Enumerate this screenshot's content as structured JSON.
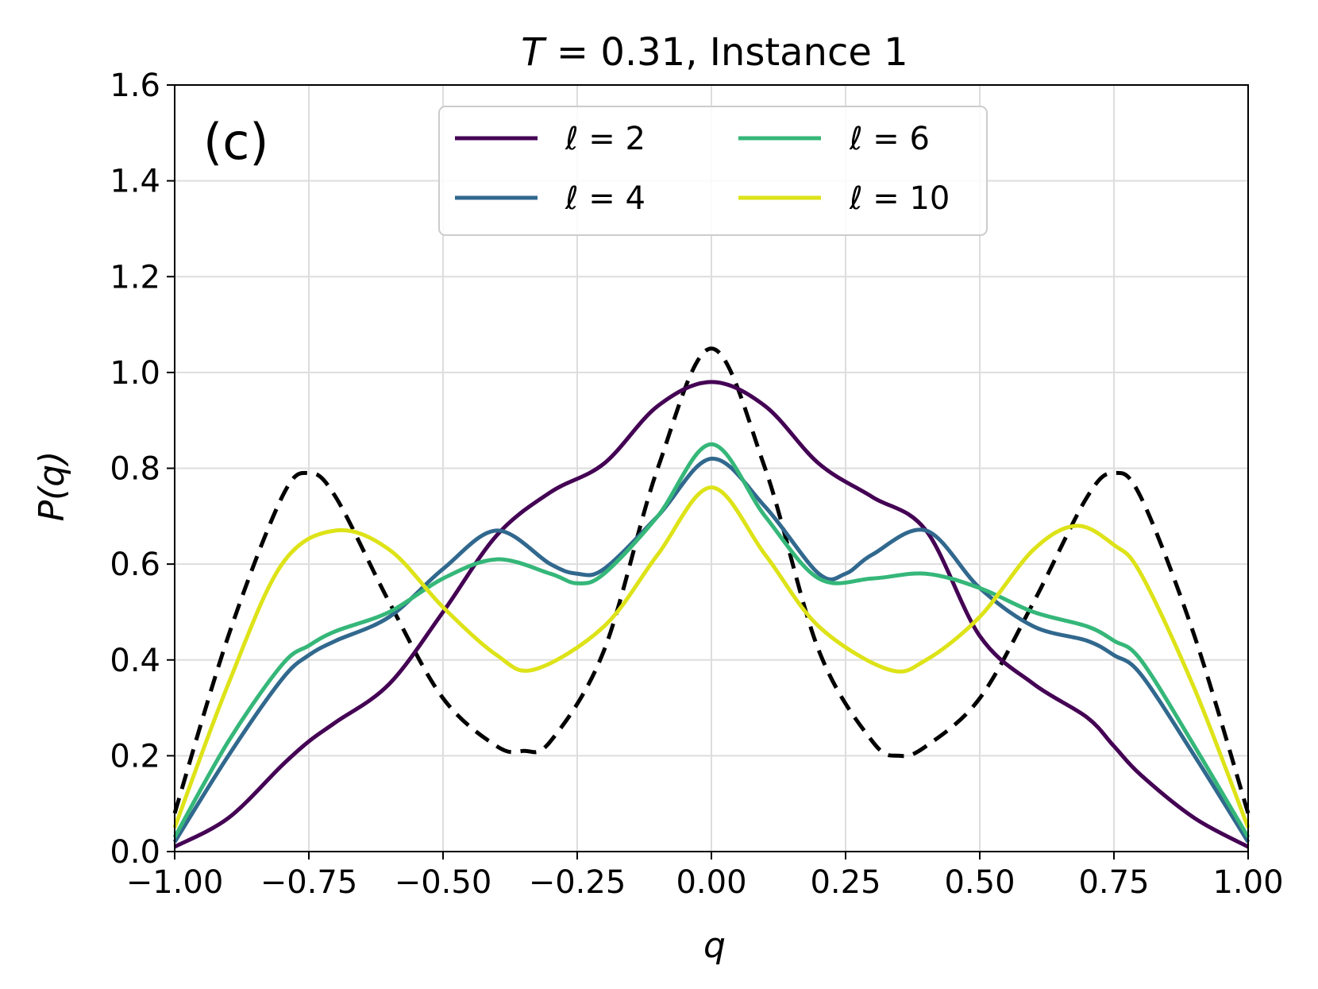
{
  "chart_data": {
    "type": "line",
    "title": "T = 0.31, Instance 1",
    "panel_label": "(c)",
    "xlabel": "q",
    "ylabel": "P(q)",
    "xlim": [
      -1.0,
      1.0
    ],
    "ylim": [
      0.0,
      1.6
    ],
    "grid": true,
    "legend_position": "top-center",
    "xticks": [
      -1.0,
      -0.75,
      -0.5,
      -0.25,
      0.0,
      0.25,
      0.5,
      0.75,
      1.0
    ],
    "xtick_labels": [
      "−1.00",
      "−0.75",
      "−0.50",
      "−0.25",
      "0.00",
      "0.25",
      "0.50",
      "0.75",
      "1.00"
    ],
    "yticks": [
      0.0,
      0.2,
      0.4,
      0.6,
      0.8,
      1.0,
      1.2,
      1.4,
      1.6
    ],
    "ytick_labels": [
      "0.0",
      "0.2",
      "0.4",
      "0.6",
      "0.8",
      "1.0",
      "1.2",
      "1.4",
      "1.6"
    ],
    "series": [
      {
        "name": "ℓ = 2",
        "color": "#440154",
        "dashed": false,
        "in_legend": true,
        "x": [
          -1.0,
          -0.9,
          -0.8,
          -0.75,
          -0.7,
          -0.6,
          -0.5,
          -0.4,
          -0.3,
          -0.2,
          -0.1,
          0.0,
          0.1,
          0.2,
          0.3,
          0.4,
          0.5,
          0.6,
          0.7,
          0.75,
          0.8,
          0.9,
          1.0
        ],
        "values": [
          0.01,
          0.07,
          0.18,
          0.23,
          0.27,
          0.35,
          0.5,
          0.66,
          0.75,
          0.81,
          0.93,
          0.98,
          0.93,
          0.81,
          0.74,
          0.67,
          0.45,
          0.35,
          0.28,
          0.22,
          0.16,
          0.07,
          0.01
        ]
      },
      {
        "name": "ℓ = 4",
        "color": "#31688e",
        "dashed": false,
        "in_legend": true,
        "x": [
          -1.0,
          -0.9,
          -0.8,
          -0.75,
          -0.7,
          -0.6,
          -0.5,
          -0.4,
          -0.3,
          -0.25,
          -0.2,
          -0.1,
          0.0,
          0.1,
          0.2,
          0.25,
          0.3,
          0.4,
          0.5,
          0.6,
          0.7,
          0.75,
          0.8,
          0.9,
          1.0
        ],
        "values": [
          0.02,
          0.2,
          0.36,
          0.41,
          0.44,
          0.49,
          0.59,
          0.67,
          0.6,
          0.58,
          0.59,
          0.7,
          0.82,
          0.72,
          0.58,
          0.58,
          0.62,
          0.67,
          0.55,
          0.47,
          0.44,
          0.41,
          0.37,
          0.2,
          0.02
        ]
      },
      {
        "name": "ℓ = 6",
        "color": "#35b779",
        "dashed": false,
        "in_legend": true,
        "x": [
          -1.0,
          -0.9,
          -0.8,
          -0.75,
          -0.7,
          -0.6,
          -0.5,
          -0.4,
          -0.3,
          -0.25,
          -0.2,
          -0.1,
          0.0,
          0.1,
          0.2,
          0.3,
          0.4,
          0.5,
          0.6,
          0.7,
          0.75,
          0.8,
          0.9,
          1.0
        ],
        "values": [
          0.03,
          0.23,
          0.39,
          0.43,
          0.46,
          0.5,
          0.57,
          0.61,
          0.58,
          0.56,
          0.58,
          0.7,
          0.85,
          0.7,
          0.57,
          0.57,
          0.58,
          0.55,
          0.5,
          0.47,
          0.44,
          0.4,
          0.22,
          0.03
        ]
      },
      {
        "name": "ℓ = 10",
        "color": "#dde318",
        "dashed": false,
        "in_legend": true,
        "x": [
          -1.0,
          -0.9,
          -0.8,
          -0.7,
          -0.6,
          -0.5,
          -0.4,
          -0.33,
          -0.2,
          -0.1,
          0.0,
          0.1,
          0.2,
          0.33,
          0.4,
          0.5,
          0.6,
          0.68,
          0.75,
          0.8,
          0.9,
          1.0
        ],
        "values": [
          0.05,
          0.35,
          0.6,
          0.67,
          0.63,
          0.51,
          0.41,
          0.38,
          0.47,
          0.62,
          0.76,
          0.62,
          0.47,
          0.38,
          0.4,
          0.49,
          0.63,
          0.68,
          0.64,
          0.58,
          0.34,
          0.05
        ]
      },
      {
        "name": "dashed reference",
        "color": "#000000",
        "dashed": true,
        "in_legend": false,
        "x": [
          -1.0,
          -0.9,
          -0.8,
          -0.75,
          -0.7,
          -0.6,
          -0.5,
          -0.4,
          -0.35,
          -0.3,
          -0.2,
          -0.1,
          0.0,
          0.1,
          0.2,
          0.3,
          0.35,
          0.4,
          0.5,
          0.6,
          0.7,
          0.75,
          0.8,
          0.9,
          1.0
        ],
        "values": [
          0.08,
          0.45,
          0.74,
          0.79,
          0.74,
          0.52,
          0.32,
          0.22,
          0.21,
          0.23,
          0.42,
          0.8,
          1.05,
          0.8,
          0.42,
          0.23,
          0.2,
          0.22,
          0.32,
          0.52,
          0.74,
          0.79,
          0.74,
          0.45,
          0.08
        ]
      }
    ]
  }
}
